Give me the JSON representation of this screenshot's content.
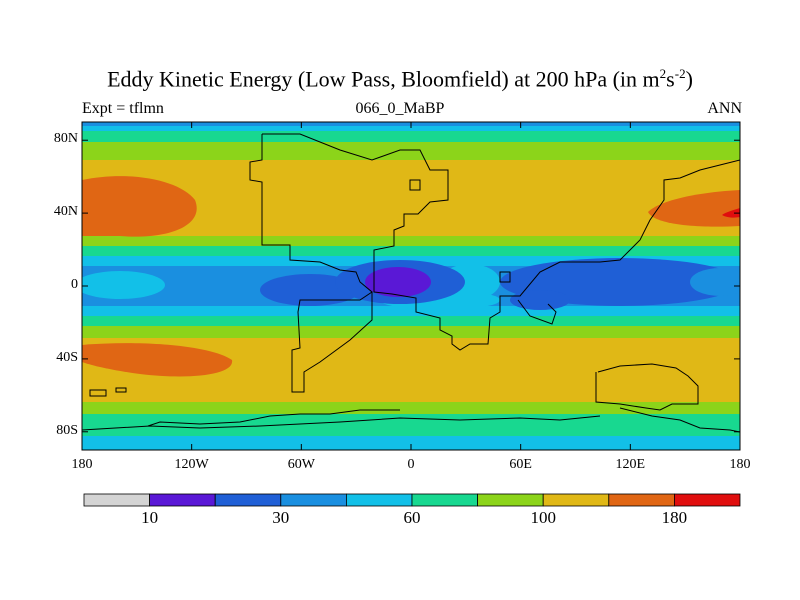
{
  "title_main": "Eddy Kinetic Energy (Low Pass, Bloomfield) at 200 hPa (in m",
  "title_sup1": "2",
  "title_mid": "s",
  "title_sup2": "-2",
  "title_end": ")",
  "left_label": "Expt = tflmn",
  "center_label": "066_0_MaBP",
  "right_label": "ANN",
  "lat_labels": [
    "80N",
    "40N",
    "0",
    "40S",
    "80S"
  ],
  "lon_labels": [
    "180",
    "120W",
    "60W",
    "0",
    "60E",
    "120E",
    "180"
  ],
  "colorbar": {
    "colors": [
      "#d4d4d4",
      "#5a18d6",
      "#1f5fd6",
      "#1a8fe0",
      "#12c0e8",
      "#18d890",
      "#8cd41a",
      "#e0b816",
      "#e06614",
      "#e00e0e"
    ],
    "tick_labels": [
      "10",
      "30",
      "60",
      "100",
      "180"
    ]
  }
}
